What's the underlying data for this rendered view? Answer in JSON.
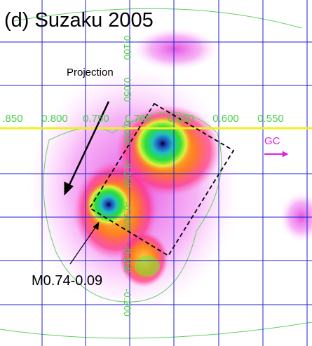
{
  "title": "(d) Suzaku 2005",
  "annotations": {
    "projection": "Projection",
    "source": "M0.74-0.09",
    "gc": "GC"
  },
  "axis_labels": {
    "horizontal": [
      ".850",
      "0.800",
      "0.750",
      "0.700",
      "0.650",
      "0.600",
      "0.550"
    ],
    "vertical": [
      "0.100",
      "0.050",
      "0.000",
      "-0.050",
      "-0.100",
      "-0.150",
      "-0.200"
    ]
  }
}
